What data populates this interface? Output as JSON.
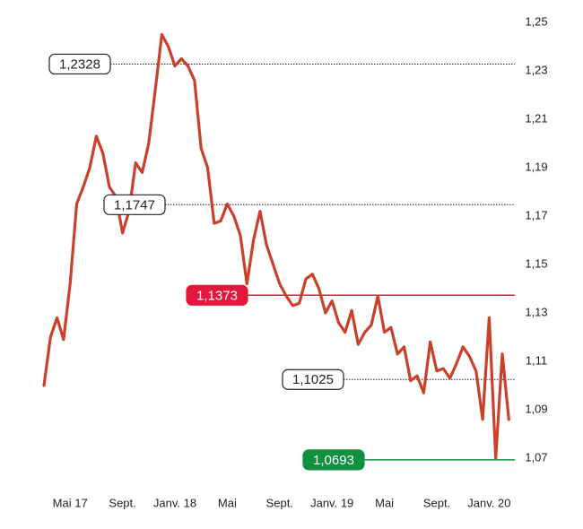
{
  "chart_data": {
    "type": "line",
    "color": "#c9412b",
    "categories": [
      null,
      null,
      null,
      null,
      "Mai 17",
      null,
      null,
      null,
      null,
      null,
      null,
      null,
      "Sept.",
      null,
      null,
      null,
      null,
      null,
      null,
      null,
      "Janv. 18",
      null,
      null,
      null,
      null,
      null,
      null,
      null,
      "Mai",
      null,
      null,
      null,
      null,
      null,
      null,
      null,
      "Sept.",
      null,
      null,
      null,
      null,
      null,
      null,
      null,
      "Janv. 19",
      null,
      null,
      null,
      null,
      null,
      null,
      null,
      "Mai",
      null,
      null,
      null,
      null,
      null,
      null,
      null,
      "Sept.",
      null,
      null,
      null,
      null,
      null,
      null,
      null,
      "Janv. 20",
      null,
      null,
      null
    ],
    "values": [
      1.1,
      1.12,
      1.128,
      1.119,
      1.142,
      1.175,
      1.182,
      1.19,
      1.203,
      1.196,
      1.182,
      1.178,
      1.163,
      1.172,
      1.192,
      1.188,
      1.2,
      1.222,
      1.245,
      1.24,
      1.232,
      1.235,
      1.232,
      1.226,
      1.198,
      1.19,
      1.167,
      1.168,
      1.175,
      1.17,
      1.162,
      1.142,
      1.16,
      1.172,
      1.158,
      1.15,
      1.142,
      1.137,
      1.133,
      1.134,
      1.144,
      1.146,
      1.14,
      1.13,
      1.135,
      1.126,
      1.122,
      1.131,
      1.117,
      1.122,
      1.125,
      1.137,
      1.122,
      1.124,
      1.113,
      1.116,
      1.102,
      1.104,
      1.097,
      1.118,
      1.106,
      1.107,
      1.103,
      1.109,
      1.116,
      1.112,
      1.106,
      1.086,
      1.128,
      1.07,
      1.113,
      1.086
    ],
    "ylim": [
      1.07,
      1.25
    ],
    "yticks": [
      {
        "value": 1.07,
        "label": "1,07"
      },
      {
        "value": 1.09,
        "label": "1,09"
      },
      {
        "value": 1.11,
        "label": "1,11"
      },
      {
        "value": 1.13,
        "label": "1,13"
      },
      {
        "value": 1.15,
        "label": "1,15"
      },
      {
        "value": 1.17,
        "label": "1,17"
      },
      {
        "value": 1.19,
        "label": "1,19"
      },
      {
        "value": 1.21,
        "label": "1,21"
      },
      {
        "value": 1.23,
        "label": "1,23"
      },
      {
        "value": 1.25,
        "label": "1,25"
      }
    ],
    "grid": false,
    "annotations": [
      {
        "value": 1.2328,
        "label": "1,2328",
        "color": "#222222",
        "style": "outline"
      },
      {
        "value": 1.1747,
        "label": "1,1747",
        "color": "#222222",
        "style": "outline"
      },
      {
        "value": 1.1373,
        "label": "1,1373",
        "color": "#e3173e",
        "style": "filled"
      },
      {
        "value": 1.1025,
        "label": "1,1025",
        "color": "#222222",
        "style": "outline"
      },
      {
        "value": 1.0693,
        "label": "1,0693",
        "color": "#0f9140",
        "style": "filled"
      }
    ]
  }
}
